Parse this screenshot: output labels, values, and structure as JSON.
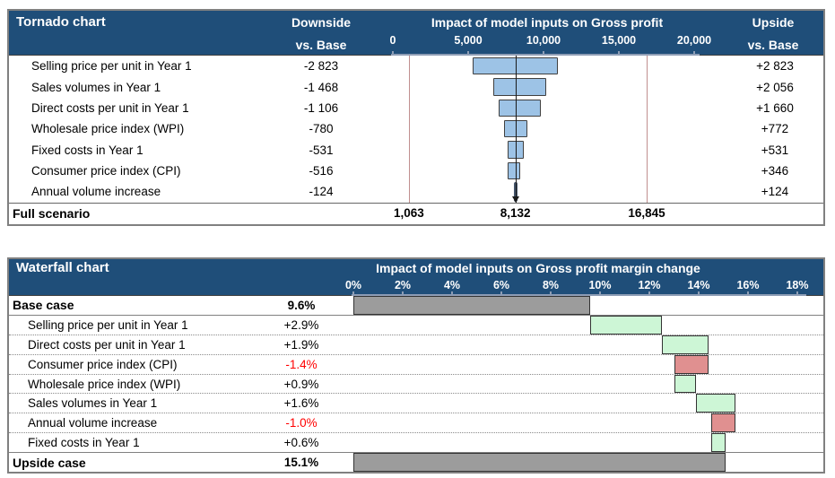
{
  "colors": {
    "header_navy": "#1F4E79",
    "header_text": "#FFFFFF",
    "axis_line": "#8E9DB5",
    "table_border": "#808080",
    "tornado_bar_fill": "#9DC3E6",
    "tornado_bar_border": "#404040",
    "tornado_small_bar": "#44546A",
    "scenario_line": "#C08F8F",
    "base_line": "#1A1A1A",
    "increase_fill": "#CDF6D6",
    "decrease_fill": "#E09090",
    "total_fill": "#9C9C9C",
    "waterfall_bar_border": "#333333",
    "negative_text": "#FF0000"
  },
  "chart_data": [
    {
      "type": "tornado-bar",
      "panel_title": "Tornado chart",
      "title": "Impact of model inputs on Gross profit",
      "downside_header": "Downside",
      "upside_header": "Upside",
      "vs_base_label": "vs. Base",
      "footer_label": "Full scenario",
      "axis": {
        "min": 0,
        "max": 20000,
        "tick_step": 5000,
        "tick_values": [
          0,
          5000,
          10000,
          15000,
          20000
        ],
        "tick_labels": [
          "0",
          "5,000",
          "10,000",
          "15,000",
          "20,000"
        ]
      },
      "base_value": 8132,
      "base_label": "8,132",
      "scenario_low": 1063,
      "scenario_low_label": "1,063",
      "scenario_high": 16845,
      "scenario_high_label": "16,845",
      "rows": [
        {
          "label": "Selling price per unit in Year 1",
          "downside_label": "-2 823",
          "upside_label": "+2 823",
          "downside": 2823,
          "upside": 2823
        },
        {
          "label": "Sales volumes in Year 1",
          "downside_label": "-1 468",
          "upside_label": "+2 056",
          "downside": 1468,
          "upside": 2056
        },
        {
          "label": "Direct costs per unit in Year 1",
          "downside_label": "-1 106",
          "upside_label": "+1 660",
          "downside": 1106,
          "upside": 1660
        },
        {
          "label": "Wholesale price index (WPI)",
          "downside_label": "-780",
          "upside_label": "+772",
          "downside": 780,
          "upside": 772
        },
        {
          "label": "Fixed costs in Year 1",
          "downside_label": "-531",
          "upside_label": "+531",
          "downside": 531,
          "upside": 531
        },
        {
          "label": "Consumer price index (CPI)",
          "downside_label": "-516",
          "upside_label": "+346",
          "downside": 516,
          "upside": 346
        },
        {
          "label": "Annual volume increase",
          "downside_label": "-124",
          "upside_label": "+124",
          "downside": 124,
          "upside": 124
        }
      ]
    },
    {
      "type": "waterfall",
      "panel_title": "Waterfall chart",
      "title": "Impact of model inputs on Gross profit margin change",
      "axis": {
        "min": 0,
        "max": 18,
        "tick_step": 2,
        "unit": "%",
        "tick_values": [
          0,
          2,
          4,
          6,
          8,
          10,
          12,
          14,
          16,
          18
        ],
        "tick_labels": [
          "0%",
          "2%",
          "4%",
          "6%",
          "8%",
          "10%",
          "12%",
          "14%",
          "16%",
          "18%"
        ]
      },
      "rows": [
        {
          "label": "Base case",
          "value_label": "9.6%",
          "kind": "total",
          "start": 0,
          "end": 9.6
        },
        {
          "label": "Selling price per unit in Year 1",
          "value_label": "+2.9%",
          "kind": "increase",
          "start": 9.6,
          "end": 12.5
        },
        {
          "label": "Direct costs per unit in Year 1",
          "value_label": "+1.9%",
          "kind": "increase",
          "start": 12.5,
          "end": 14.4
        },
        {
          "label": "Consumer price index (CPI)",
          "value_label": "-1.4%",
          "kind": "decrease",
          "start": 14.4,
          "end": 13.0
        },
        {
          "label": "Wholesale price index (WPI)",
          "value_label": "+0.9%",
          "kind": "increase",
          "start": 13.0,
          "end": 13.9
        },
        {
          "label": "Sales volumes in Year 1",
          "value_label": "+1.6%",
          "kind": "increase",
          "start": 13.9,
          "end": 15.5
        },
        {
          "label": "Annual volume increase",
          "value_label": "-1.0%",
          "kind": "decrease",
          "start": 15.5,
          "end": 14.5
        },
        {
          "label": "Fixed costs in Year 1",
          "value_label": "+0.6%",
          "kind": "increase",
          "start": 14.5,
          "end": 15.1
        },
        {
          "label": "Upside case",
          "value_label": "15.1%",
          "kind": "total",
          "start": 0,
          "end": 15.1
        }
      ]
    }
  ]
}
